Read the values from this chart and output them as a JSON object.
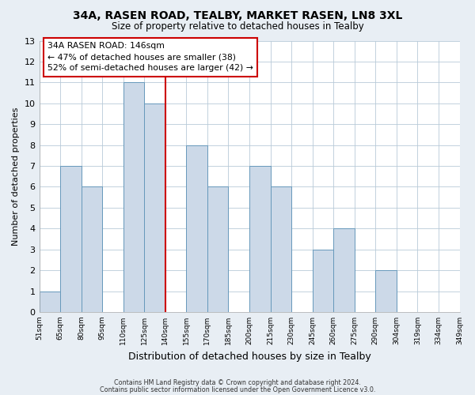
{
  "title": "34A, RASEN ROAD, TEALBY, MARKET RASEN, LN8 3XL",
  "subtitle": "Size of property relative to detached houses in Tealby",
  "xlabel": "Distribution of detached houses by size in Tealby",
  "ylabel": "Number of detached properties",
  "bin_labels": [
    "51sqm",
    "65sqm",
    "80sqm",
    "95sqm",
    "110sqm",
    "125sqm",
    "140sqm",
    "155sqm",
    "170sqm",
    "185sqm",
    "200sqm",
    "215sqm",
    "230sqm",
    "245sqm",
    "260sqm",
    "275sqm",
    "290sqm",
    "304sqm",
    "319sqm",
    "334sqm",
    "349sqm"
  ],
  "bar_values": [
    1,
    7,
    6,
    0,
    11,
    10,
    0,
    8,
    6,
    0,
    7,
    6,
    0,
    3,
    4,
    0,
    2,
    0,
    0,
    0
  ],
  "bar_color": "#ccd9e8",
  "bar_edge_color": "#6699bb",
  "vline_label_idx": 6,
  "vline_color": "#cc0000",
  "ylim": [
    0,
    13
  ],
  "yticks": [
    0,
    1,
    2,
    3,
    4,
    5,
    6,
    7,
    8,
    9,
    10,
    11,
    12,
    13
  ],
  "annotation_title": "34A RASEN ROAD: 146sqm",
  "annotation_line1": "← 47% of detached houses are smaller (38)",
  "annotation_line2": "52% of semi-detached houses are larger (42) →",
  "annotation_box_color": "white",
  "annotation_box_edge": "#cc0000",
  "footer1": "Contains HM Land Registry data © Crown copyright and database right 2024.",
  "footer2": "Contains public sector information licensed under the Open Government Licence v3.0.",
  "bg_color": "#e8eef4",
  "plot_bg_color": "white",
  "grid_color": "#b8cad8"
}
